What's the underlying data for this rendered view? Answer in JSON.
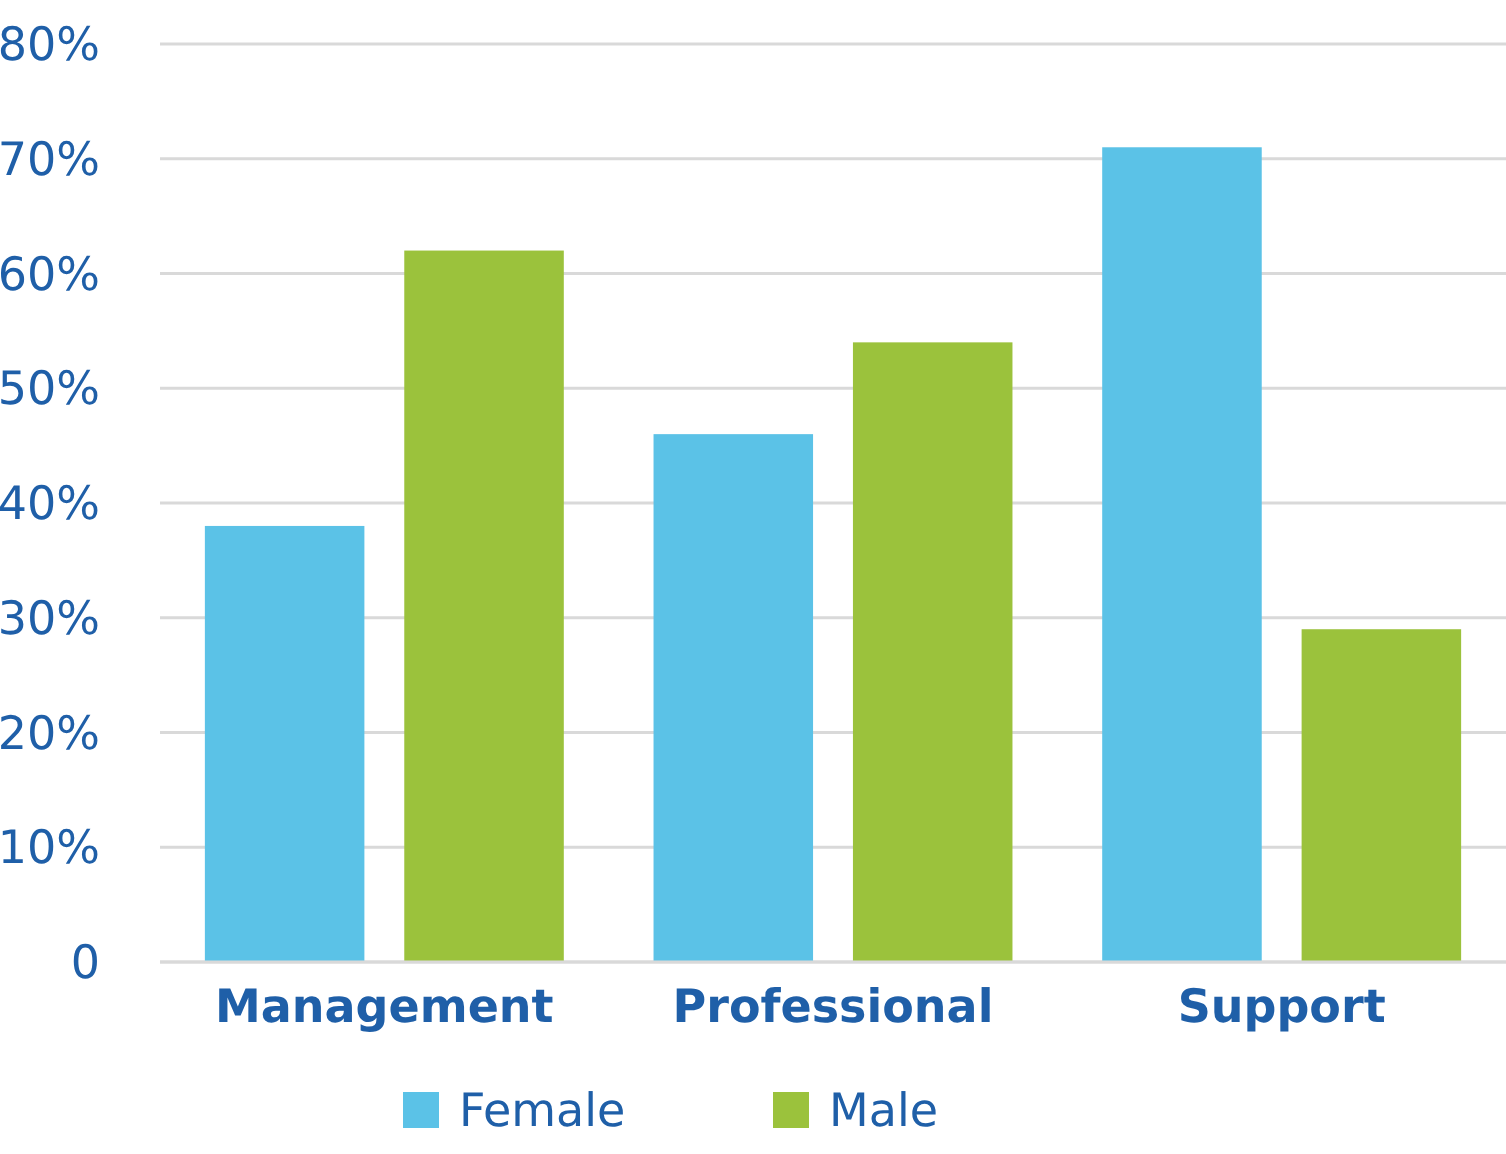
{
  "chart_data": {
    "type": "bar",
    "categories": [
      "Management",
      "Professional",
      "Support"
    ],
    "series": [
      {
        "name": "Female",
        "color": "#5bc2e7",
        "values": [
          38,
          46,
          71
        ]
      },
      {
        "name": "Male",
        "color": "#9bc23c",
        "values": [
          62,
          54,
          29
        ]
      }
    ],
    "ylim": [
      0,
      80
    ],
    "yticks": [
      0,
      {
        "value": 10,
        "label": "10%"
      },
      {
        "value": 20,
        "label": "20%"
      },
      {
        "value": 30,
        "label": "30%"
      },
      {
        "value": 40,
        "label": "40%"
      },
      {
        "value": 50,
        "label": "50%"
      },
      {
        "value": 60,
        "label": "60%"
      },
      {
        "value": 70,
        "label": "70%"
      },
      {
        "value": 80,
        "label": "80%"
      }
    ],
    "grid": "y",
    "legend": "bottom"
  }
}
